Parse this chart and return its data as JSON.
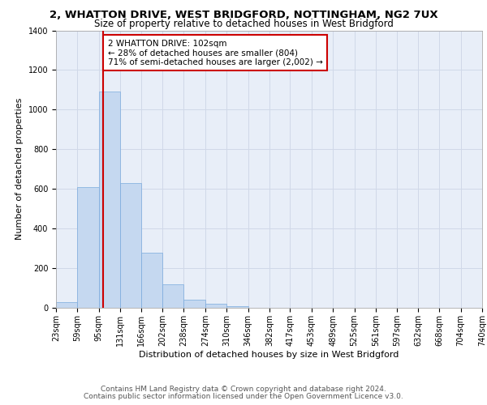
{
  "title_line1": "2, WHATTON DRIVE, WEST BRIDGFORD, NOTTINGHAM, NG2 7UX",
  "title_line2": "Size of property relative to detached houses in West Bridgford",
  "xlabel": "Distribution of detached houses by size in West Bridgford",
  "ylabel": "Number of detached properties",
  "bin_labels": [
    "23sqm",
    "59sqm",
    "95sqm",
    "131sqm",
    "166sqm",
    "202sqm",
    "238sqm",
    "274sqm",
    "310sqm",
    "346sqm",
    "382sqm",
    "417sqm",
    "453sqm",
    "489sqm",
    "525sqm",
    "561sqm",
    "597sqm",
    "632sqm",
    "668sqm",
    "704sqm",
    "740sqm"
  ],
  "bin_edges": [
    23,
    59,
    95,
    131,
    166,
    202,
    238,
    274,
    310,
    346,
    382,
    417,
    453,
    489,
    525,
    561,
    597,
    632,
    668,
    704,
    740
  ],
  "bar_heights": [
    30,
    610,
    1090,
    630,
    280,
    120,
    40,
    20,
    10,
    2,
    0,
    0,
    0,
    0,
    0,
    0,
    0,
    0,
    0,
    0
  ],
  "bar_color": "#c5d8f0",
  "bar_edge_color": "#7aaadd",
  "vline_x": 102,
  "vline_color": "#cc0000",
  "annotation_text": "2 WHATTON DRIVE: 102sqm\n← 28% of detached houses are smaller (804)\n71% of semi-detached houses are larger (2,002) →",
  "annotation_box_color": "#ffffff",
  "annotation_box_edge": "#cc0000",
  "ylim": [
    0,
    1400
  ],
  "yticks": [
    0,
    200,
    400,
    600,
    800,
    1000,
    1200,
    1400
  ],
  "grid_color": "#d0d8e8",
  "bg_color": "#e8eef8",
  "footer_line1": "Contains HM Land Registry data © Crown copyright and database right 2024.",
  "footer_line2": "Contains public sector information licensed under the Open Government Licence v3.0.",
  "title_fontsize": 9.5,
  "subtitle_fontsize": 8.5,
  "axis_label_fontsize": 8,
  "tick_fontsize": 7,
  "annotation_fontsize": 7.5,
  "footer_fontsize": 6.5
}
